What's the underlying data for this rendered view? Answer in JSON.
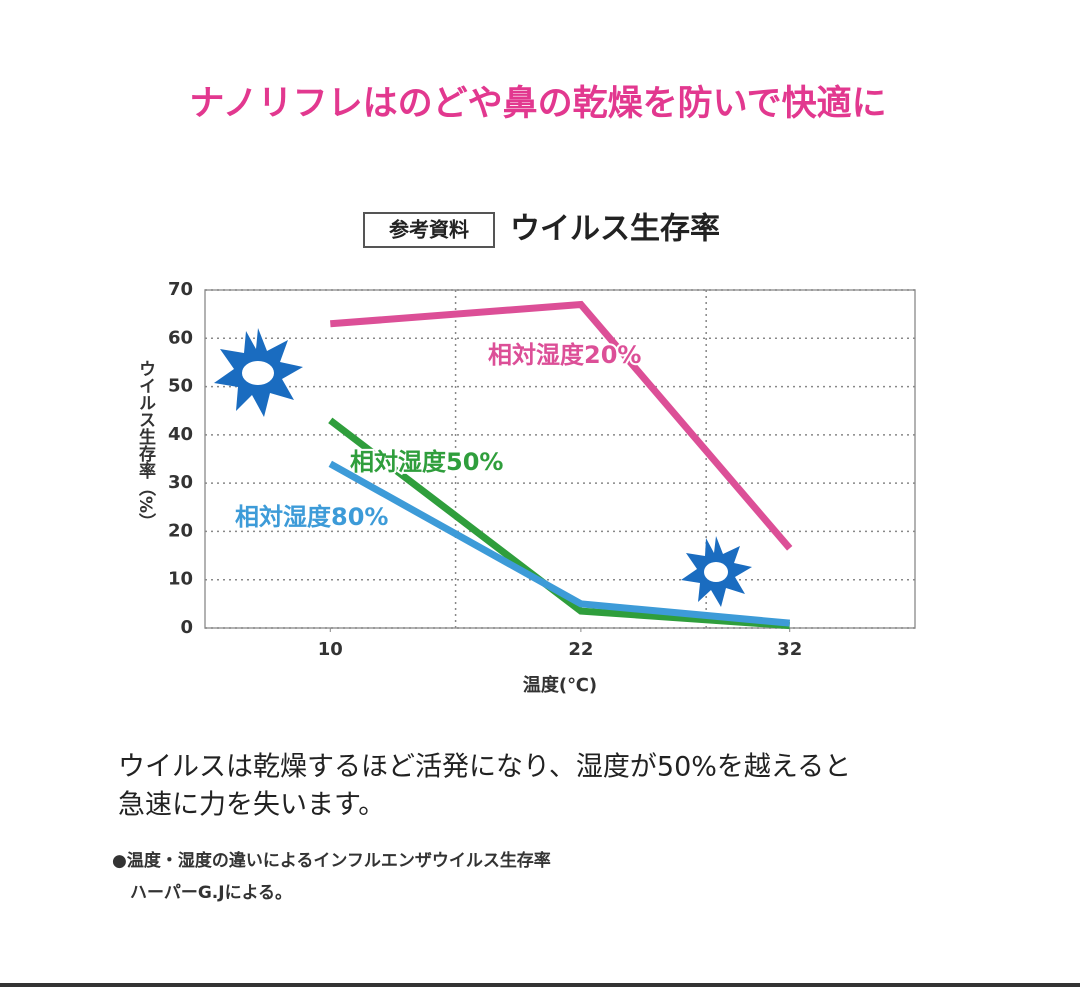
{
  "header": {
    "title": "ナノリフレはのどや鼻の乾燥を防いで快適に"
  },
  "chart_data": {
    "type": "line",
    "tag": "参考資料",
    "title": "ウイルス生存率",
    "x_label": "温度(℃)",
    "y_label": "ウイルス生存率（%）",
    "x": [
      10,
      22,
      32
    ],
    "xlim": [
      4,
      38
    ],
    "xticks": [
      10,
      22,
      32
    ],
    "xgrid": [
      16,
      28
    ],
    "ylim": [
      0,
      70
    ],
    "yticks": [
      0,
      10,
      20,
      30,
      40,
      50,
      60,
      70
    ],
    "grid": true,
    "series": [
      {
        "name": "相対湿度20%",
        "color": "#dc4f97",
        "values": [
          63,
          67,
          16.5
        ]
      },
      {
        "name": "相対湿度50%",
        "color": "#2f9e3c",
        "values": [
          43,
          3.5,
          0.5
        ]
      },
      {
        "name": "相対湿度80%",
        "color": "#3d9bd8",
        "values": [
          34,
          5,
          1
        ]
      }
    ]
  },
  "description": [
    "ウイルスは乾燥するほど活発になり、湿度が50%を越えると",
    "急速に力を失います。"
  ],
  "notes": [
    "●温度・湿度の違いによるインフルエンザウイルス生存率",
    "ハーパーG.Jによる。"
  ]
}
